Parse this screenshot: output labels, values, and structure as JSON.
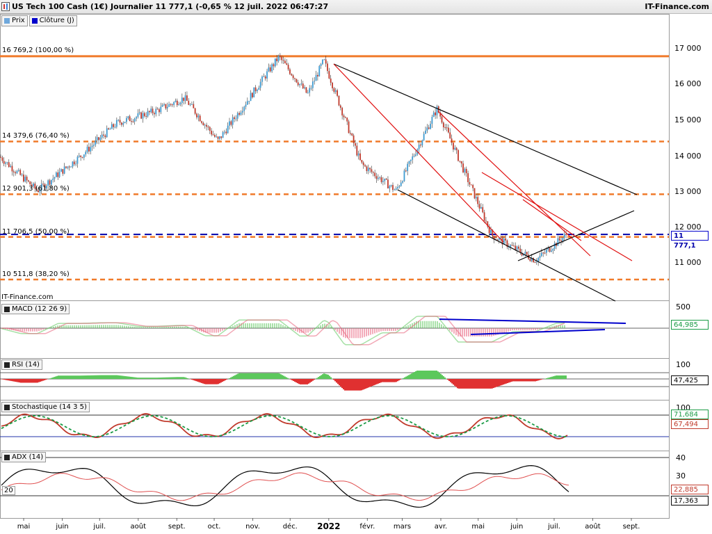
{
  "header": {
    "title": "US Tech 100 Cash (1€) Journalier 11 777,1 (-0,65 % 12 juil. 2022 06:47:27",
    "brand": "IT-Finance.com"
  },
  "legend": [
    {
      "label": "Prix",
      "color": "#6fa8dc"
    },
    {
      "label": "Clôture (J)",
      "color": "#0000cc"
    }
  ],
  "watermark": "IT-Finance.com",
  "colors": {
    "up": "#3d9ad1",
    "down": "#c0392b",
    "fibo": "#f07a2a",
    "trend_red": "#e01010",
    "trend_black": "#000000",
    "macd_pos": "#5cc85c",
    "macd_neg": "#e8607a",
    "stoch_k": "#c0392b",
    "stoch_d": "#1a9b45",
    "adx": "#000000",
    "adx_di": "#e05050"
  },
  "chart_data": [
    {
      "type": "line",
      "title": "US Tech 100 Cash (1€) Journalier",
      "last_value": "11 777,1",
      "ylim": [
        10000,
        17600
      ],
      "y_ticks": [
        "17 000",
        "16 000",
        "15 000",
        "14 000",
        "13 000",
        "12 000",
        "11 000"
      ],
      "x_ticks": [
        "mai",
        "juin",
        "juil.",
        "août",
        "sept.",
        "oct.",
        "nov.",
        "déc.",
        "2022",
        "févr.",
        "mars",
        "avr.",
        "mai",
        "juin",
        "juil.",
        "août",
        "sept."
      ],
      "fibonacci_levels": [
        {
          "label": "16 769,2 (100,00 %)",
          "value": 16769.2
        },
        {
          "label": "14 379,6 (76,40 %)",
          "value": 14379.6
        },
        {
          "label": "12 901,3 (61,80 %)",
          "value": 12901.3
        },
        {
          "label": "11 706,5 (50,00 %)",
          "value": 11706.5
        },
        {
          "label": "10 511,8 (38,20 %)",
          "value": 10511.8
        }
      ],
      "close_line": 11777.1,
      "series": [
        {
          "name": "Prix",
          "x": [
            "2021-04-12",
            "2021-05-12",
            "2021-06-15",
            "2021-07-15",
            "2021-08-16",
            "2021-09-07",
            "2021-10-04",
            "2021-10-27",
            "2021-11-22",
            "2021-12-15",
            "2021-12-28",
            "2022-01-27",
            "2022-02-24",
            "2022-03-29",
            "2022-05-12",
            "2022-06-16",
            "2022-07-11"
          ],
          "values": [
            13950,
            13000,
            13950,
            14900,
            15250,
            15600,
            14400,
            15500,
            16750,
            15700,
            16650,
            13750,
            13000,
            15300,
            11750,
            11050,
            11777
          ]
        }
      ]
    },
    {
      "type": "bar",
      "title": "MACD (12 26 9)",
      "last_value": "64,985",
      "ylim_label": "500"
    },
    {
      "type": "area",
      "title": "RSI (14)",
      "last_value": "47,425",
      "ytick": "100"
    },
    {
      "type": "line",
      "title": "Stochastique (14 3 5)",
      "values": {
        "k": "71,684",
        "d": "67,494"
      },
      "ytick": "100"
    },
    {
      "type": "line",
      "title": "ADX (14)",
      "values": {
        "adx": "17,363",
        "di": "22,885"
      },
      "y_ticks": [
        "40",
        "30",
        "20"
      ],
      "left_label": "20"
    }
  ]
}
